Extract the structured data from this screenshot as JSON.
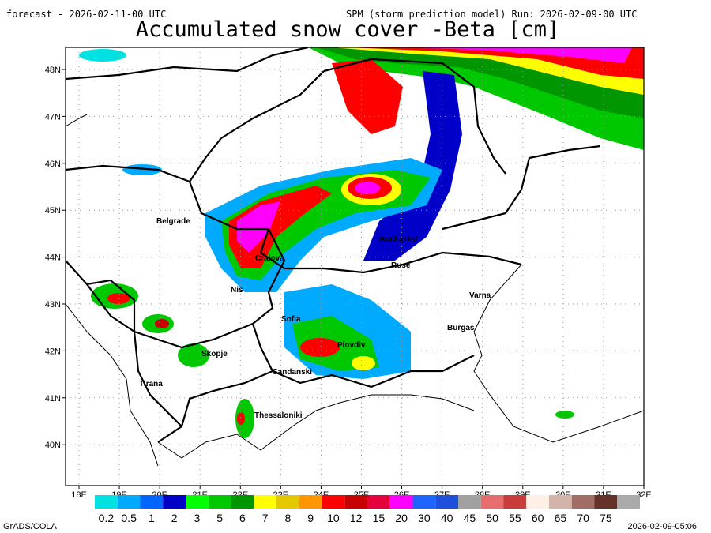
{
  "header": {
    "forecast": "forecast - 2026-02-11-00 UTC",
    "run": "SPM (storm prediction model) Run: 2026-02-09-00 UTC",
    "title": "Accumulated snow cover -Beta [cm]"
  },
  "map": {
    "lat_labels": [
      "48N",
      "47N",
      "46N",
      "45N",
      "44N",
      "43N",
      "42N",
      "41N",
      "40N"
    ],
    "lon_labels": [
      "18E",
      "19E",
      "20E",
      "21E",
      "22E",
      "23E",
      "24E",
      "25E",
      "26E",
      "27E",
      "28E",
      "29E",
      "30E",
      "31E",
      "32E"
    ],
    "cities": [
      "Belgrade",
      "Bucharest",
      "Ruse",
      "Varna",
      "Burgas",
      "Sofia",
      "Plovdiv",
      "Skopje",
      "Nis",
      "Sandanski",
      "Tirana",
      "Thessaloniki",
      "Craiova"
    ]
  },
  "colorbar": {
    "labels": [
      "0.2",
      "0.5",
      "1",
      "2",
      "3",
      "5",
      "6",
      "7",
      "8",
      "9",
      "10",
      "12",
      "15",
      "20",
      "30",
      "40",
      "45",
      "50",
      "55",
      "60",
      "65",
      "70",
      "75"
    ],
    "colors": [
      "#00e1e1",
      "#00aaff",
      "#0064ff",
      "#0000c8",
      "#00ff00",
      "#00c800",
      "#009600",
      "#ffff00",
      "#e6c800",
      "#ff9600",
      "#ff0000",
      "#c80000",
      "#e6003c",
      "#ff00ff",
      "#1e64ff",
      "#1e50dc",
      "#a0a0a0",
      "#e66e6e",
      "#c83c3c",
      "#fff0e6",
      "#d2b4aa",
      "#a06e64",
      "#643228",
      "#aaaaaa"
    ]
  },
  "footer": {
    "left": "GrADS/COLA",
    "right": "2026-02-09-05:06"
  }
}
